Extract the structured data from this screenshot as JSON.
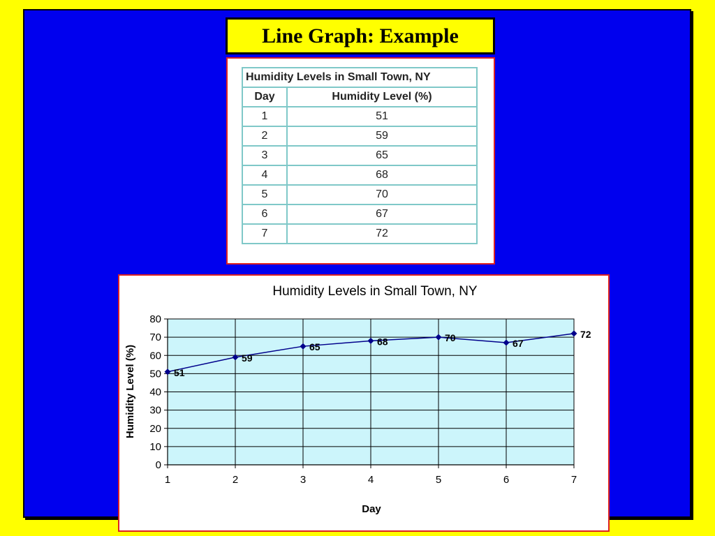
{
  "slide": {
    "title": "Line Graph: Example",
    "colors": {
      "background": "#ffff00",
      "slide": "#0000ee",
      "panel_border": "#dd2222",
      "plot_area": "#ccf5fb",
      "series": "#00008b",
      "table_border": "#7fc8c8"
    }
  },
  "table": {
    "caption": "Humidity Levels in Small Town, NY",
    "headers": [
      "Day",
      "Humidity Level (%)"
    ],
    "rows": [
      [
        "1",
        "51"
      ],
      [
        "2",
        "59"
      ],
      [
        "3",
        "65"
      ],
      [
        "4",
        "68"
      ],
      [
        "5",
        "70"
      ],
      [
        "6",
        "67"
      ],
      [
        "7",
        "72"
      ]
    ]
  },
  "chart_data": {
    "type": "line",
    "title": "Humidity Levels in Small Town, NY",
    "xlabel": "Day",
    "ylabel": "Humidity Level (%)",
    "x": [
      1,
      2,
      3,
      4,
      5,
      6,
      7
    ],
    "series": [
      {
        "values": [
          51,
          59,
          65,
          68,
          70,
          67,
          72
        ],
        "data_labels": [
          "51",
          "59",
          "65",
          "68",
          "70",
          "67",
          "72"
        ]
      }
    ],
    "xlim": [
      1,
      7
    ],
    "ylim": [
      0,
      80
    ],
    "yticks": [
      0,
      10,
      20,
      30,
      40,
      50,
      60,
      70,
      80
    ],
    "grid": true,
    "legend": "none",
    "marker": "diamond"
  }
}
